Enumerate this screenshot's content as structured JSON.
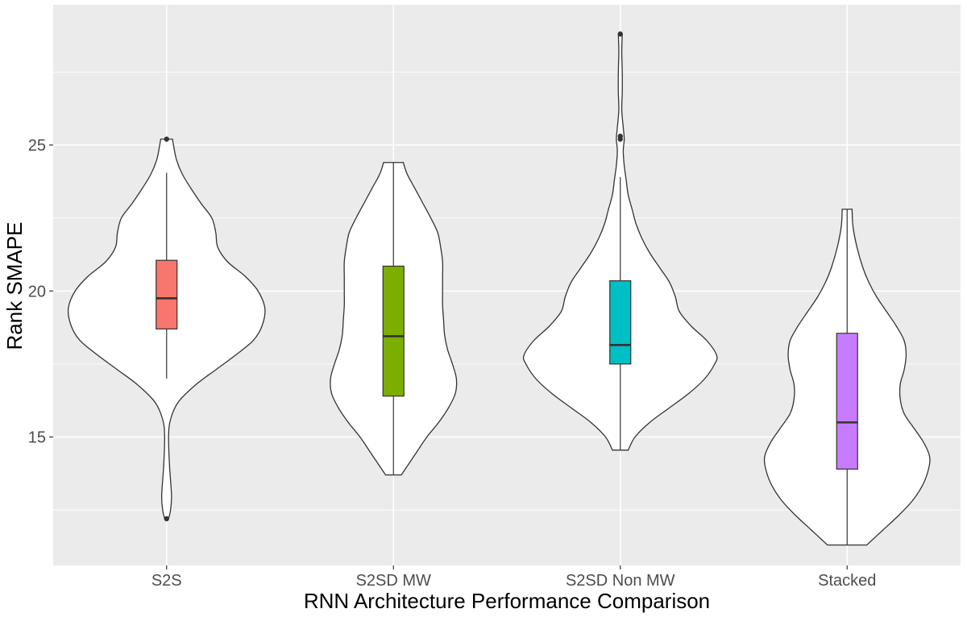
{
  "chart_data": {
    "type": "violin",
    "xlabel": "RNN Architecture Performance Comparison",
    "ylabel": "Rank SMAPE",
    "ylim": [
      10.6,
      29.8
    ],
    "yticks": [
      15,
      20,
      25
    ],
    "categories": [
      "S2S",
      "S2SD MW",
      "S2SD Non MW",
      "Stacked"
    ],
    "grid": true,
    "legend": "none",
    "colors": {
      "panel_background": "#ebebeb",
      "grid": "#ffffff",
      "violin_fill": "#ffffff",
      "outline": "#333333"
    },
    "series": [
      {
        "category": "S2S",
        "fill": "#F8766D",
        "box": {
          "q1": 18.7,
          "median": 19.75,
          "q3": 21.05,
          "whisker_low": 17.0,
          "whisker_high": 24.05
        },
        "outliers": [
          25.2,
          12.2
        ],
        "range": [
          12.2,
          25.2
        ],
        "density": [
          [
            12.2,
            0.02
          ],
          [
            12.5,
            0.04
          ],
          [
            13.0,
            0.05
          ],
          [
            14.0,
            0.03
          ],
          [
            15.0,
            0.02
          ],
          [
            15.6,
            0.04
          ],
          [
            16.2,
            0.12
          ],
          [
            16.8,
            0.3
          ],
          [
            17.3,
            0.5
          ],
          [
            17.8,
            0.7
          ],
          [
            18.3,
            0.88
          ],
          [
            18.8,
            0.97
          ],
          [
            19.4,
            1.0
          ],
          [
            20.0,
            0.93
          ],
          [
            20.5,
            0.8
          ],
          [
            21.0,
            0.62
          ],
          [
            21.5,
            0.52
          ],
          [
            22.0,
            0.5
          ],
          [
            22.5,
            0.46
          ],
          [
            23.0,
            0.35
          ],
          [
            23.5,
            0.25
          ],
          [
            24.0,
            0.16
          ],
          [
            24.5,
            0.1
          ],
          [
            25.0,
            0.07
          ],
          [
            25.2,
            0.06
          ]
        ]
      },
      {
        "category": "S2SD MW",
        "fill": "#7CAE00",
        "box": {
          "q1": 16.4,
          "median": 18.45,
          "q3": 20.85,
          "whisker_low": 13.7,
          "whisker_high": 24.4
        },
        "outliers": [],
        "range": [
          13.7,
          24.4
        ],
        "density": [
          [
            13.7,
            0.08
          ],
          [
            14.0,
            0.14
          ],
          [
            14.5,
            0.24
          ],
          [
            15.0,
            0.34
          ],
          [
            15.5,
            0.46
          ],
          [
            16.0,
            0.56
          ],
          [
            16.5,
            0.63
          ],
          [
            17.0,
            0.64
          ],
          [
            17.5,
            0.6
          ],
          [
            18.0,
            0.55
          ],
          [
            18.5,
            0.52
          ],
          [
            19.0,
            0.51
          ],
          [
            19.5,
            0.5
          ],
          [
            20.0,
            0.5
          ],
          [
            20.5,
            0.5
          ],
          [
            21.0,
            0.5
          ],
          [
            21.5,
            0.48
          ],
          [
            22.0,
            0.45
          ],
          [
            22.5,
            0.38
          ],
          [
            23.0,
            0.3
          ],
          [
            23.5,
            0.22
          ],
          [
            24.0,
            0.14
          ],
          [
            24.4,
            0.1
          ]
        ]
      },
      {
        "category": "S2SD Non MW",
        "fill": "#00BFC4",
        "box": {
          "q1": 17.5,
          "median": 18.15,
          "q3": 20.35,
          "whisker_low": 14.55,
          "whisker_high": 23.9
        },
        "outliers": [
          28.8,
          25.2,
          25.3
        ],
        "range": [
          14.55,
          28.8
        ],
        "density": [
          [
            14.55,
            0.08
          ],
          [
            15.0,
            0.15
          ],
          [
            15.5,
            0.3
          ],
          [
            16.0,
            0.5
          ],
          [
            16.5,
            0.7
          ],
          [
            17.0,
            0.86
          ],
          [
            17.5,
            0.96
          ],
          [
            17.8,
            0.98
          ],
          [
            18.3,
            0.88
          ],
          [
            18.8,
            0.72
          ],
          [
            19.3,
            0.6
          ],
          [
            19.8,
            0.56
          ],
          [
            20.3,
            0.5
          ],
          [
            20.8,
            0.4
          ],
          [
            21.3,
            0.3
          ],
          [
            21.8,
            0.22
          ],
          [
            22.3,
            0.16
          ],
          [
            22.8,
            0.12
          ],
          [
            23.3,
            0.08
          ],
          [
            23.8,
            0.06
          ],
          [
            24.3,
            0.04
          ],
          [
            24.8,
            0.03
          ],
          [
            25.2,
            0.04
          ],
          [
            25.6,
            0.03
          ],
          [
            26.2,
            0.015
          ],
          [
            26.8,
            0.02
          ],
          [
            27.5,
            0.02
          ],
          [
            28.2,
            0.015
          ],
          [
            28.8,
            0.02
          ]
        ]
      },
      {
        "category": "Stacked",
        "fill": "#C77CFF",
        "box": {
          "q1": 13.9,
          "median": 15.5,
          "q3": 18.55,
          "whisker_low": 11.3,
          "whisker_high": 22.8
        },
        "outliers": [],
        "range": [
          11.3,
          22.8
        ],
        "density": [
          [
            11.3,
            0.2
          ],
          [
            11.8,
            0.36
          ],
          [
            12.3,
            0.52
          ],
          [
            12.8,
            0.66
          ],
          [
            13.3,
            0.76
          ],
          [
            13.8,
            0.82
          ],
          [
            14.3,
            0.84
          ],
          [
            14.8,
            0.78
          ],
          [
            15.3,
            0.68
          ],
          [
            15.8,
            0.58
          ],
          [
            16.3,
            0.54
          ],
          [
            16.8,
            0.54
          ],
          [
            17.3,
            0.58
          ],
          [
            17.8,
            0.6
          ],
          [
            18.3,
            0.58
          ],
          [
            18.8,
            0.5
          ],
          [
            19.3,
            0.4
          ],
          [
            19.8,
            0.3
          ],
          [
            20.3,
            0.22
          ],
          [
            20.8,
            0.16
          ],
          [
            21.5,
            0.1
          ],
          [
            22.2,
            0.06
          ],
          [
            22.8,
            0.05
          ]
        ]
      }
    ]
  }
}
